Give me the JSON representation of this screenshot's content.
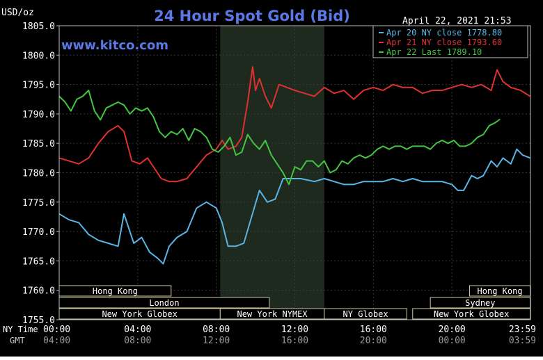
{
  "chart_data": {
    "type": "line",
    "title": "24 Hour Spot Gold (Bid)",
    "ylabel": "USD/oz",
    "watermark": "www.kitco.com",
    "timestamp": "April 22, 2021 21:53",
    "ylim": [
      1755,
      1805
    ],
    "yticks": [
      "1805.0",
      "1800.0",
      "1795.0",
      "1790.0",
      "1785.0",
      "1780.0",
      "1775.0",
      "1770.0",
      "1765.0",
      "1760.0",
      "1755.0"
    ],
    "ytick_values": [
      1805,
      1800,
      1795,
      1790,
      1785,
      1780,
      1775,
      1770,
      1765,
      1760,
      1755
    ],
    "xlim": [
      0,
      24
    ],
    "ny_time_label": "NY Time",
    "gmt_label": "GMT",
    "ny_ticks": [
      "00:00",
      "04:00",
      "08:00",
      "12:00",
      "16:00",
      "20:00",
      "23:59"
    ],
    "gmt_ticks": [
      "04:00",
      "08:00",
      "12:00",
      "16:00",
      "20:00",
      "00:00",
      "03:59"
    ],
    "tick_hours": [
      0,
      4,
      8,
      12,
      16,
      20,
      23.983
    ],
    "shaded_hours": [
      8.2,
      13.5
    ],
    "sessions": [
      {
        "label": "Hong Kong",
        "start": 0,
        "end": 5.7,
        "row": 0
      },
      {
        "label": "London",
        "start": 0,
        "end": 10.7,
        "row": 1
      },
      {
        "label": "New York Globex",
        "start": 0,
        "end": 8.2,
        "row": 2
      },
      {
        "label": "New York NYMEX",
        "start": 8.2,
        "end": 13.5,
        "row": 2
      },
      {
        "label": "NY Globex",
        "start": 13.5,
        "end": 17.7,
        "row": 2
      },
      {
        "label": "Hong Kong",
        "start": 20.9,
        "end": 23.983,
        "row": 0
      },
      {
        "label": "Sydney",
        "start": 18.9,
        "end": 23.983,
        "row": 1
      },
      {
        "label": "New York Globex",
        "start": 18.0,
        "end": 23.983,
        "row": 2
      }
    ],
    "series": [
      {
        "name": "Apr 20 NY close",
        "legend_label": "Apr 20 NY close 1778.80",
        "color": "#5ab4e6",
        "x": [
          0,
          0.5,
          1,
          1.5,
          2,
          2.5,
          3,
          3.3,
          3.8,
          4.2,
          4.6,
          5,
          5.3,
          5.6,
          6,
          6.5,
          7,
          7.5,
          8,
          8.3,
          8.6,
          9,
          9.4,
          9.8,
          10.2,
          10.6,
          11,
          11.4,
          11.8,
          12.3,
          13,
          13.5,
          14,
          14.5,
          15,
          15.5,
          16,
          16.5,
          17,
          17.5,
          18,
          18.5,
          19,
          19.5,
          20,
          20.3,
          20.6,
          21,
          21.3,
          21.6,
          22,
          22.3,
          22.6,
          23,
          23.3,
          23.6,
          23.98
        ],
        "y": [
          1773.0,
          1772.0,
          1771.5,
          1769.5,
          1768.5,
          1768.0,
          1767.5,
          1773.0,
          1768.0,
          1769.0,
          1766.5,
          1765.5,
          1764.5,
          1767.5,
          1769.0,
          1770.0,
          1774.0,
          1775.0,
          1774.0,
          1771.5,
          1767.5,
          1767.5,
          1768.0,
          1772.5,
          1777.0,
          1775.0,
          1775.5,
          1779.0,
          1779.0,
          1779.0,
          1778.5,
          1779.0,
          1778.5,
          1778.0,
          1778.0,
          1778.5,
          1778.5,
          1778.5,
          1779.0,
          1778.5,
          1779.0,
          1778.5,
          1778.5,
          1778.5,
          1778.0,
          1777.0,
          1777.0,
          1779.5,
          1779.0,
          1779.5,
          1782.0,
          1781.0,
          1782.5,
          1781.5,
          1784.0,
          1783.0,
          1782.5
        ]
      },
      {
        "name": "Apr 21 NY close",
        "legend_label": "Apr 21 NY close 1793.60",
        "color": "#e03131",
        "x": [
          0,
          0.5,
          1,
          1.5,
          2,
          2.5,
          3,
          3.3,
          3.7,
          4.1,
          4.5,
          4.8,
          5.2,
          5.6,
          6,
          6.5,
          7,
          7.5,
          8,
          8.3,
          8.6,
          9,
          9.3,
          9.6,
          9.85,
          10,
          10.2,
          10.5,
          10.8,
          11.2,
          11.6,
          12,
          12.5,
          13,
          13.5,
          14,
          14.5,
          15,
          15.5,
          16,
          16.5,
          17,
          17.5,
          18,
          18.5,
          19,
          19.5,
          20,
          20.5,
          21,
          21.5,
          22,
          22.3,
          22.6,
          23,
          23.5,
          23.98
        ],
        "y": [
          1782.5,
          1782.0,
          1781.5,
          1782.5,
          1785.0,
          1787.0,
          1788.0,
          1787.0,
          1782.0,
          1781.5,
          1782.5,
          1781.0,
          1779.0,
          1778.5,
          1778.5,
          1779.0,
          1781.0,
          1783.0,
          1784.0,
          1785.5,
          1784.0,
          1784.5,
          1786.0,
          1792.0,
          1798.0,
          1794.0,
          1796.0,
          1793.0,
          1791.0,
          1795.0,
          1794.5,
          1794.0,
          1793.5,
          1793.0,
          1794.5,
          1793.5,
          1794.0,
          1792.5,
          1794.0,
          1794.5,
          1794.0,
          1795.0,
          1794.5,
          1794.5,
          1793.5,
          1794.0,
          1794.0,
          1794.5,
          1795.0,
          1794.5,
          1795.0,
          1794.0,
          1797.5,
          1795.5,
          1794.5,
          1794.0,
          1793.0
        ]
      },
      {
        "name": "Apr 22 Last",
        "legend_label": "Apr 22 Last 1789.10",
        "color": "#42c642",
        "x": [
          0,
          0.3,
          0.6,
          0.9,
          1.2,
          1.5,
          1.8,
          2.1,
          2.4,
          2.7,
          3.0,
          3.3,
          3.6,
          3.9,
          4.2,
          4.5,
          4.8,
          5.1,
          5.4,
          5.7,
          6.0,
          6.3,
          6.6,
          6.9,
          7.2,
          7.5,
          7.8,
          8.1,
          8.4,
          8.7,
          9.0,
          9.3,
          9.6,
          9.9,
          10.2,
          10.5,
          10.8,
          11.1,
          11.4,
          11.7,
          12.0,
          12.3,
          12.6,
          12.9,
          13.2,
          13.5,
          13.8,
          14.1,
          14.4,
          14.7,
          15.0,
          15.3,
          15.6,
          15.9,
          16.2,
          16.5,
          16.8,
          17.1,
          17.4,
          17.7,
          18.0,
          18.3,
          18.6,
          18.9,
          19.2,
          19.5,
          19.8,
          20.1,
          20.4,
          20.7,
          21.0,
          21.3,
          21.6,
          21.9,
          22.2,
          22.45
        ],
        "y": [
          1793.0,
          1792.0,
          1790.5,
          1792.5,
          1793.0,
          1794.0,
          1790.5,
          1789.0,
          1791.0,
          1791.5,
          1792.0,
          1791.5,
          1790.0,
          1791.0,
          1790.5,
          1791.0,
          1789.5,
          1787.0,
          1786.0,
          1787.0,
          1786.5,
          1787.5,
          1785.5,
          1787.5,
          1787.0,
          1786.0,
          1784.0,
          1783.5,
          1784.5,
          1786.0,
          1783.0,
          1783.5,
          1786.5,
          1785.0,
          1784.0,
          1785.5,
          1783.0,
          1781.5,
          1780.0,
          1778.0,
          1781.0,
          1780.5,
          1782.0,
          1782.0,
          1781.0,
          1782.0,
          1780.0,
          1780.5,
          1782.0,
          1781.5,
          1782.5,
          1783.0,
          1782.5,
          1783.0,
          1784.0,
          1784.5,
          1784.0,
          1784.5,
          1784.5,
          1784.0,
          1784.5,
          1784.5,
          1784.5,
          1784.0,
          1785.0,
          1785.5,
          1785.0,
          1785.5,
          1784.5,
          1784.5,
          1785.0,
          1786.0,
          1786.5,
          1788.0,
          1788.5,
          1789.1
        ]
      }
    ]
  }
}
